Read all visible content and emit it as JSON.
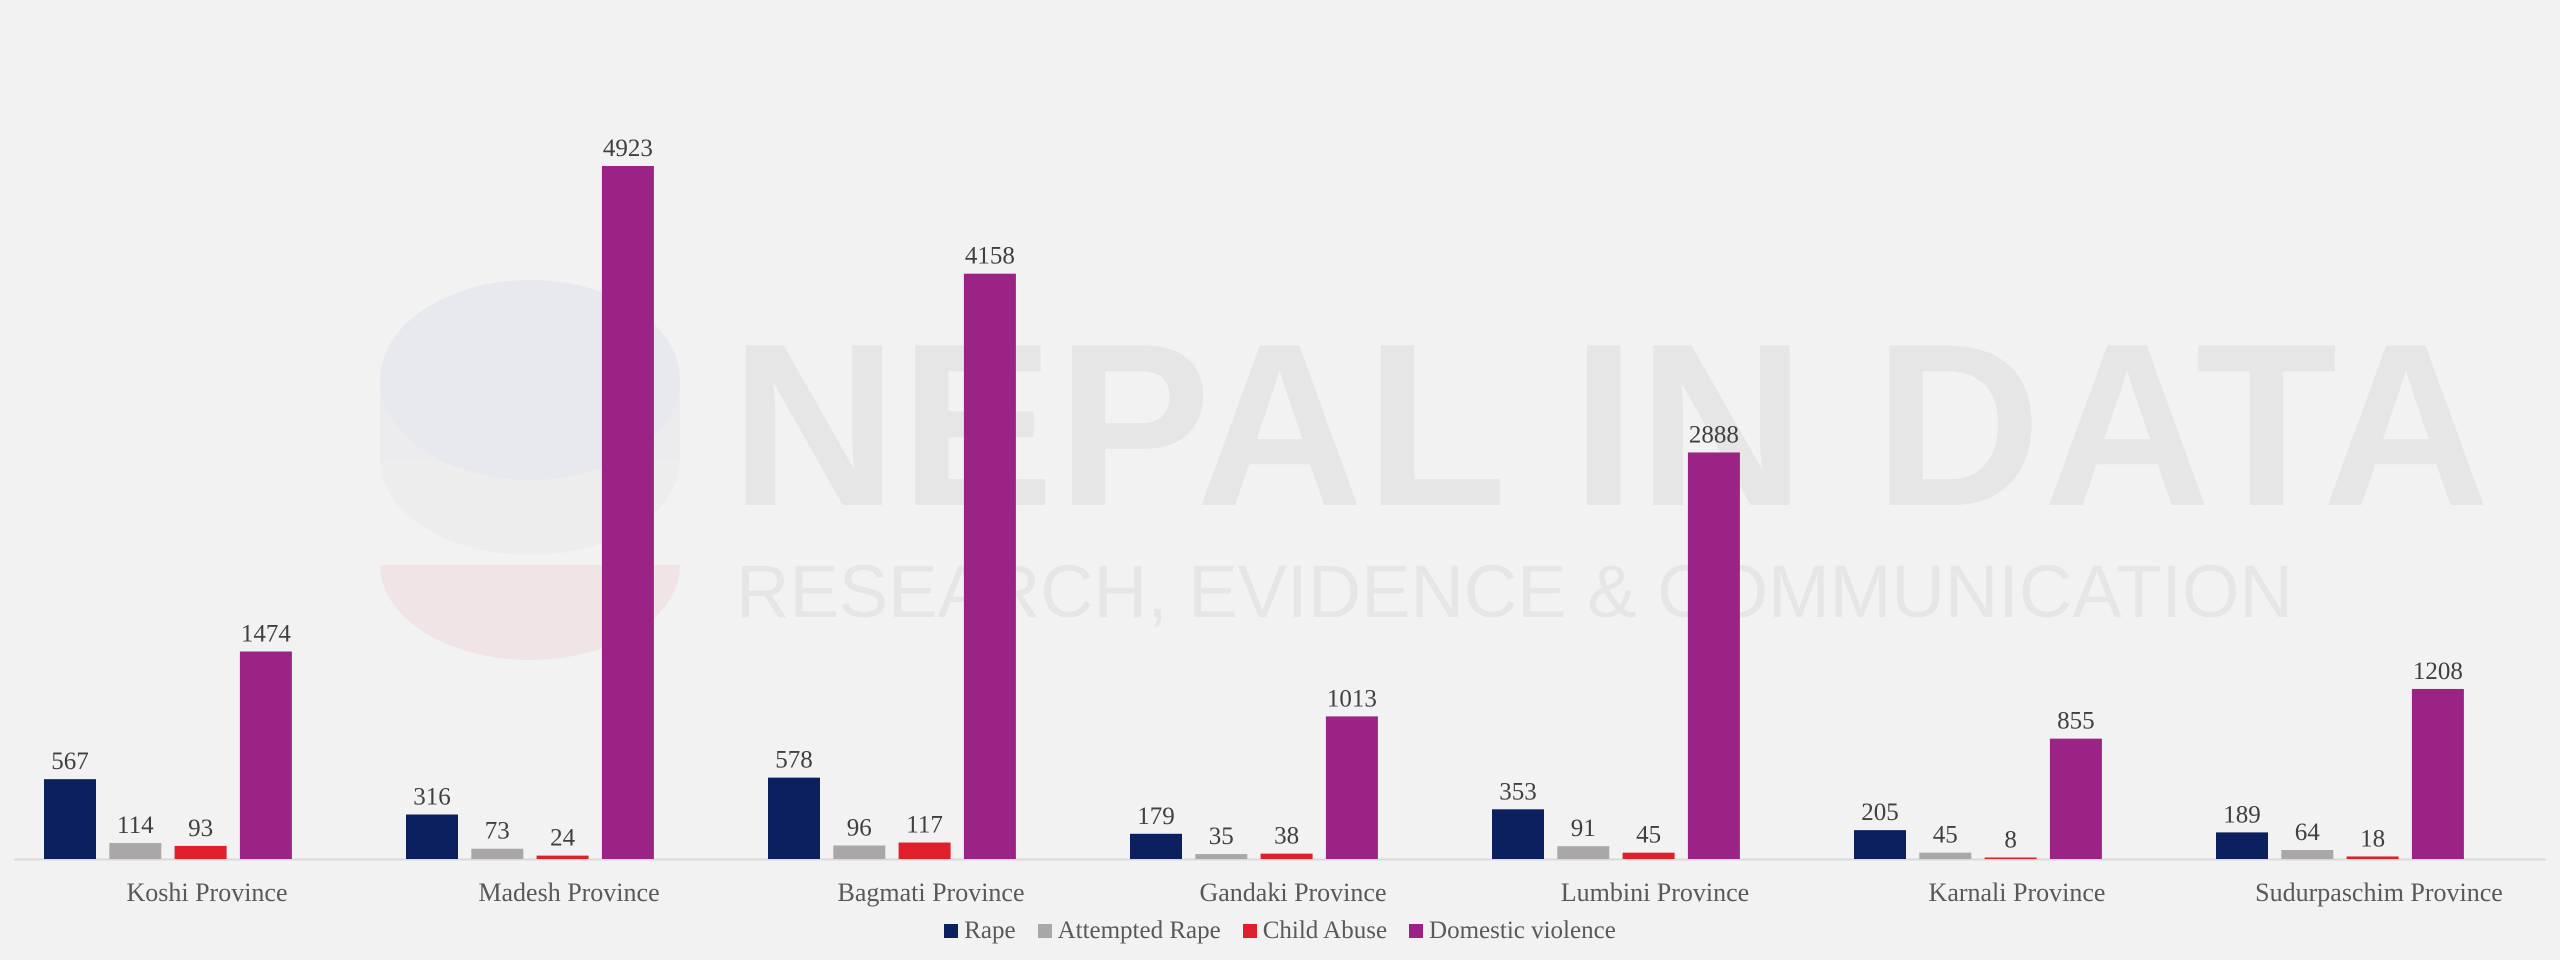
{
  "watermark": {
    "title": "NEPAL IN DATA",
    "subtitle": "RESEARCH, EVIDENCE & COMMUNICATION"
  },
  "colors": {
    "Rape": "#0c1f5e",
    "Attempted Rape": "#aaa7a8",
    "Child Abuse": "#df1f29",
    "Domestic violence": "#9c2386"
  },
  "chart_data": {
    "type": "bar",
    "categories": [
      "Koshi Province",
      "Madesh Province",
      "Bagmati Province",
      "Gandaki Province",
      "Lumbini Province",
      "Karnali Province",
      "Sudurpaschim Province"
    ],
    "series": [
      {
        "name": "Rape",
        "values": [
          567,
          316,
          578,
          179,
          353,
          205,
          189
        ]
      },
      {
        "name": "Attempted Rape",
        "values": [
          114,
          73,
          96,
          35,
          91,
          45,
          64
        ]
      },
      {
        "name": "Child Abuse",
        "values": [
          93,
          24,
          117,
          38,
          45,
          8,
          18
        ]
      },
      {
        "name": "Domestic violence",
        "values": [
          1474,
          4923,
          4158,
          1013,
          2888,
          855,
          1208
        ]
      }
    ],
    "title": "",
    "xlabel": "",
    "ylabel": "",
    "ylim": [
      0,
      4923
    ],
    "grid": false,
    "legend": "bottom"
  }
}
